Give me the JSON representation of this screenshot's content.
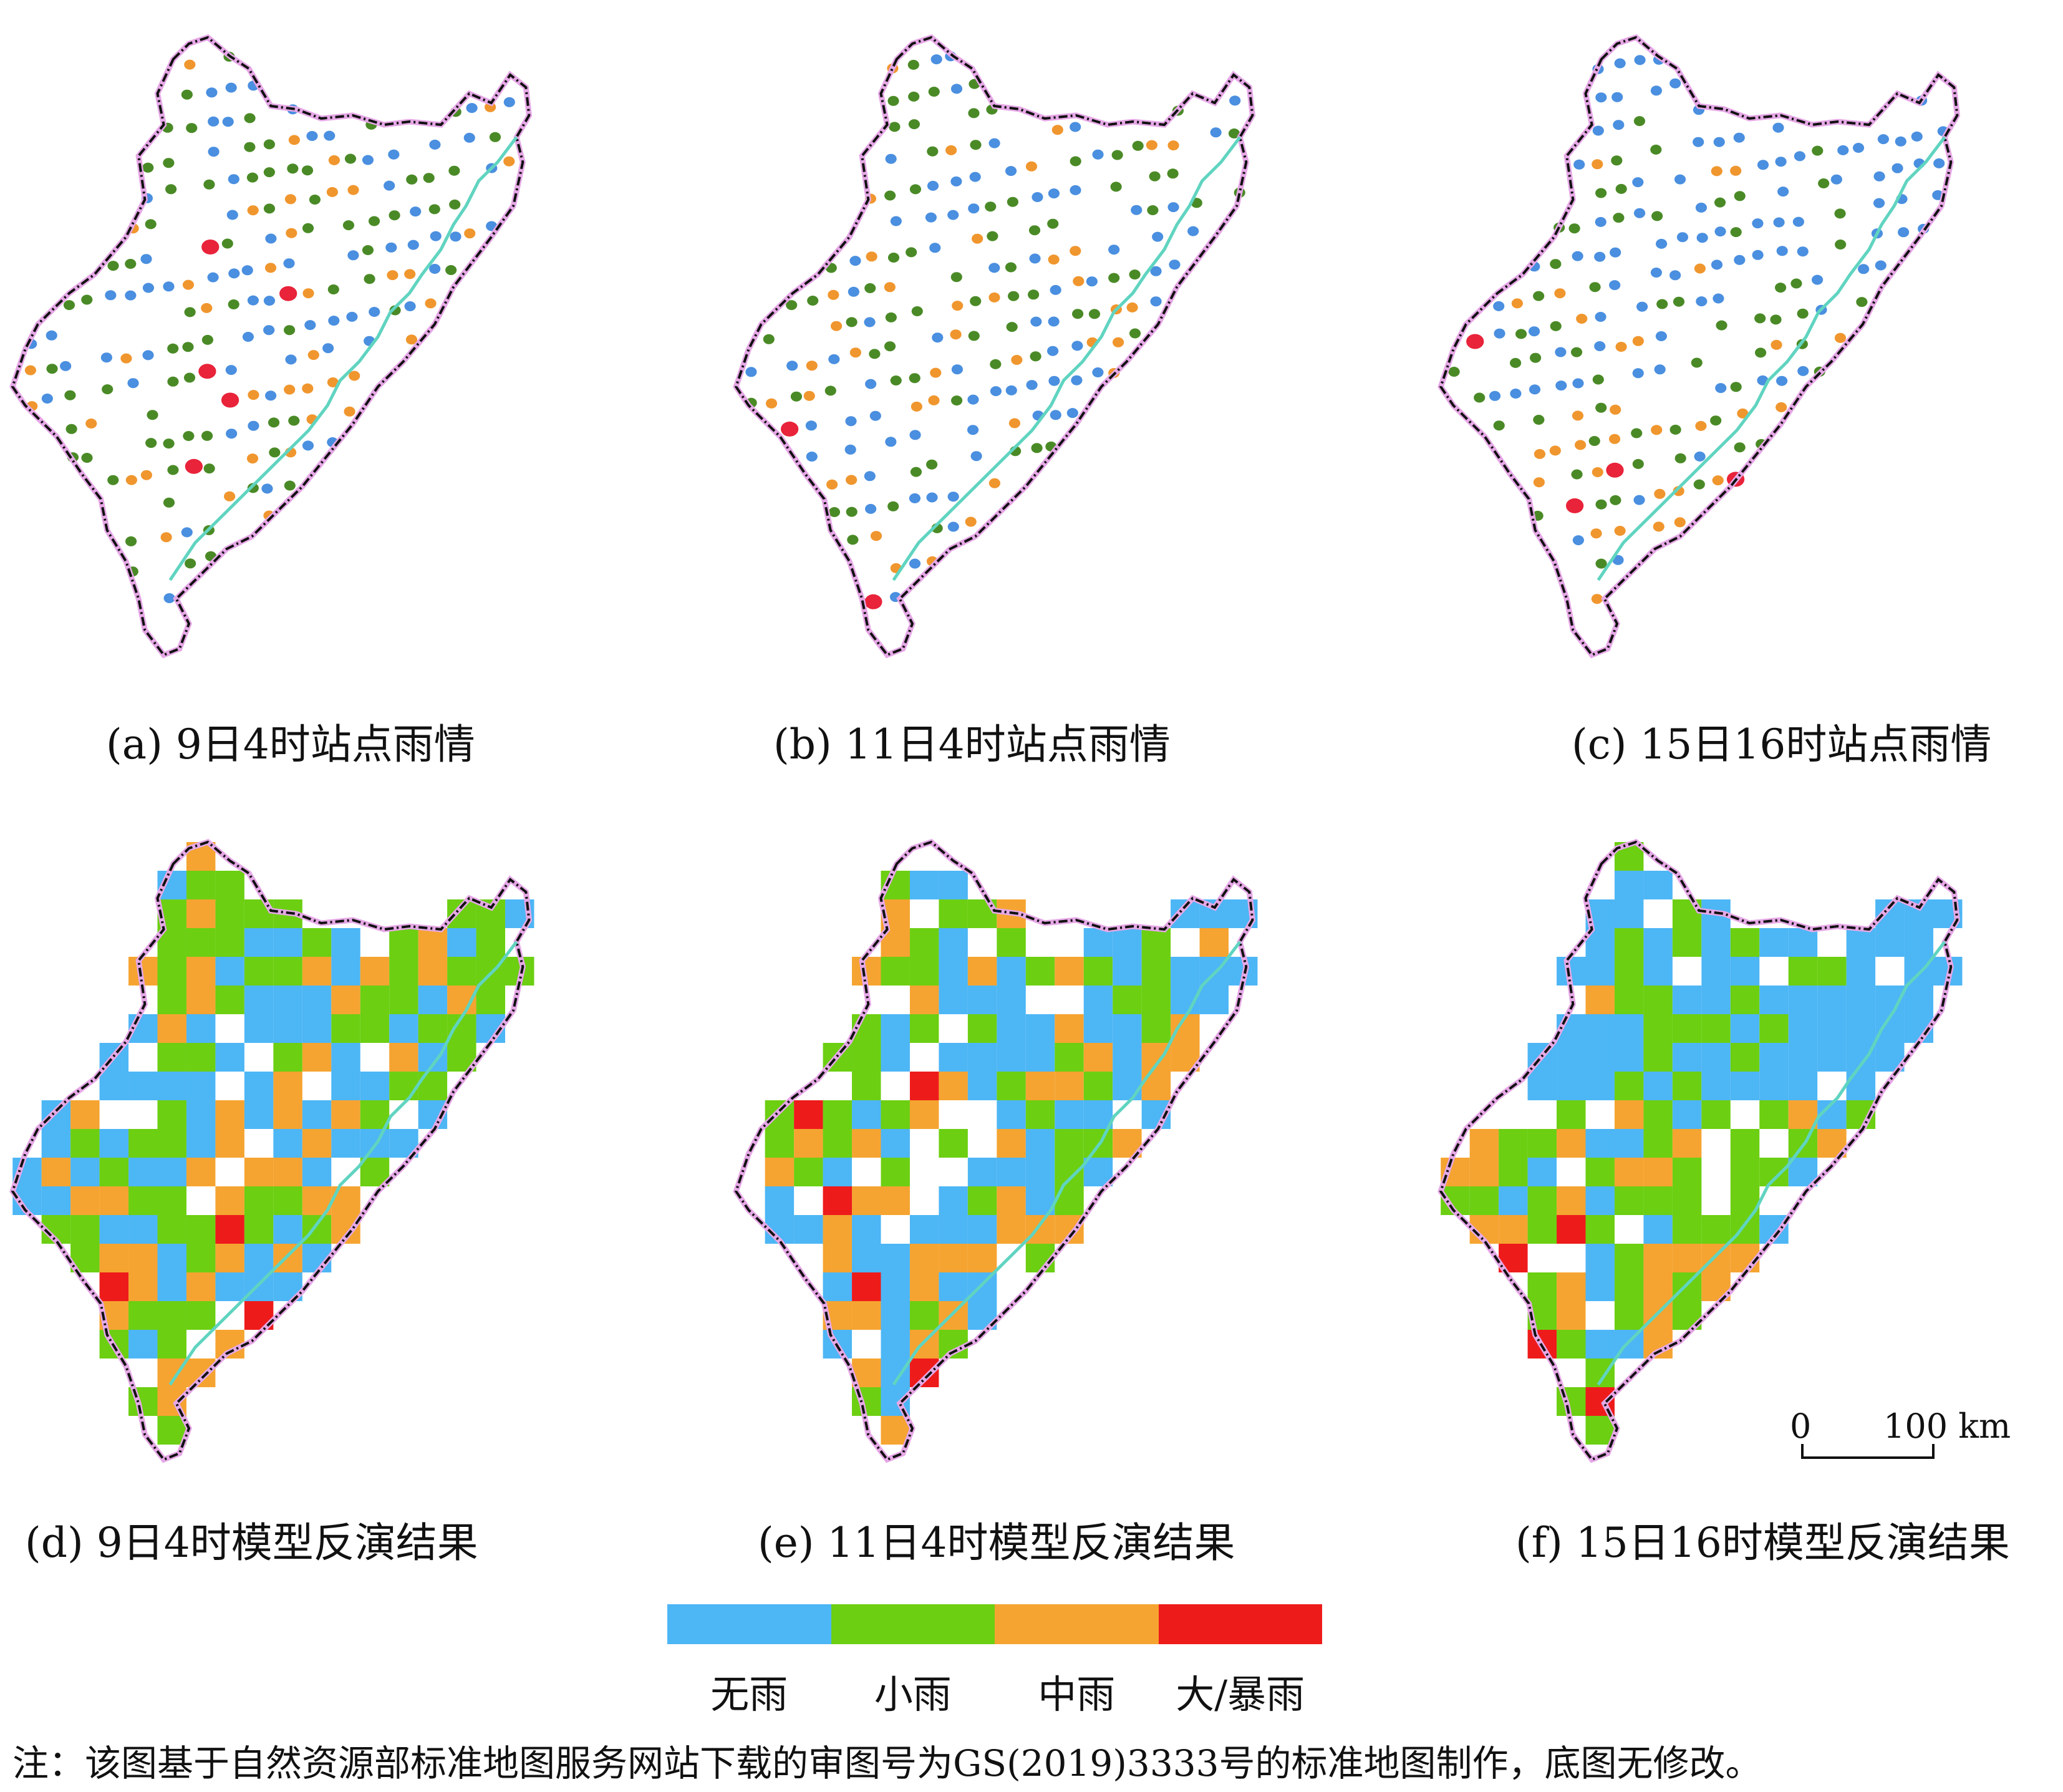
{
  "panels": [
    {
      "id": "a",
      "caption": "(a) 9日4时站点雨情",
      "kind": "stations"
    },
    {
      "id": "b",
      "caption": "(b) 11日4时站点雨情",
      "kind": "stations"
    },
    {
      "id": "c",
      "caption": "(c) 15日16时站点雨情",
      "kind": "stations"
    },
    {
      "id": "d",
      "caption": "(d) 9日4时模型反演结果",
      "kind": "grid"
    },
    {
      "id": "e",
      "caption": "(e) 11日4时模型反演结果",
      "kind": "grid"
    },
    {
      "id": "f",
      "caption": "(f) 15日16时模型反演结果",
      "kind": "grid"
    }
  ],
  "legend": [
    {
      "label": "无雨",
      "color": "#4db6f5"
    },
    {
      "label": "小雨",
      "color": "#6ccf12"
    },
    {
      "label": "中雨",
      "color": "#f5a431"
    },
    {
      "label": "大/暴雨",
      "color": "#ee1b1b"
    }
  ],
  "colors": {
    "station_none": "#4a8fe0",
    "station_light": "#4a8a26",
    "station_moderate": "#f0962e",
    "station_heavy": "#e8233a",
    "coastline": "#60d4c0",
    "border": "#111111",
    "border_glow": "#e6a8e6"
  },
  "scale": {
    "zero": "0",
    "distance": "100 km"
  },
  "note": "注：该图基于自然资源部标准地图服务网站下载的审图号为GS(2019)3333号的标准地图制作，底图无修改。"
}
